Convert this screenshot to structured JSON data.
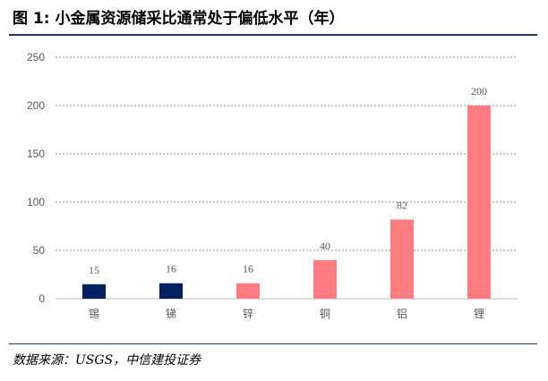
{
  "title": "图 1:  小金属资源储采比通常处于偏低水平（年）",
  "source": "数据来源：USGS，中信建投证券",
  "colors": {
    "dark": "#002060",
    "light": "#ff7c80",
    "rule": "#1f3864"
  },
  "chart_data": {
    "type": "bar",
    "categories": [
      "锡",
      "锑",
      "锌",
      "铜",
      "铝",
      "锂"
    ],
    "values": [
      15,
      16,
      16,
      40,
      82,
      200
    ],
    "bar_colors": [
      "#002060",
      "#002060",
      "#ff7c80",
      "#ff7c80",
      "#ff7c80",
      "#ff7c80"
    ],
    "ylim": [
      0,
      250
    ],
    "yticks": [
      0,
      50,
      100,
      150,
      200,
      250
    ],
    "grid": true,
    "data_labels": true
  }
}
